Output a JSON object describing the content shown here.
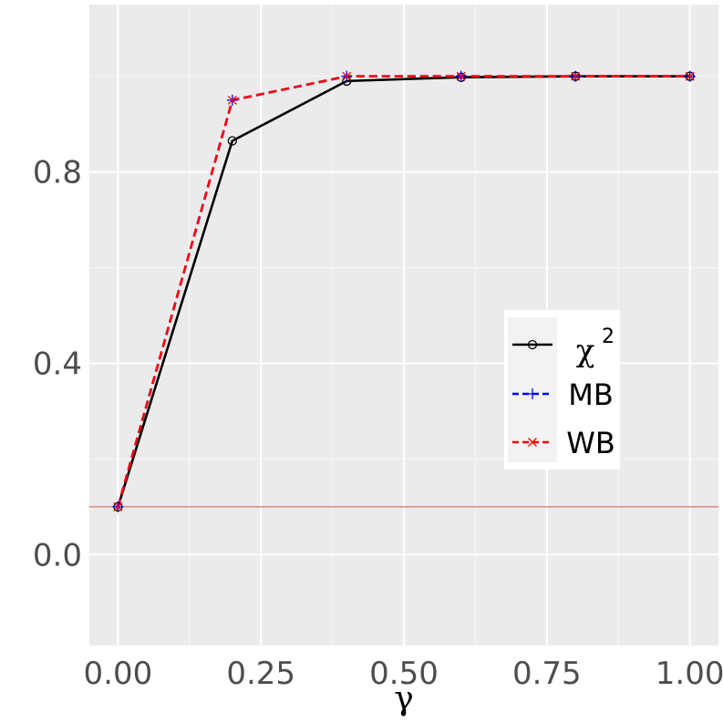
{
  "chart_data": {
    "type": "line",
    "title": "",
    "xlabel": "γ",
    "ylabel": "",
    "x": [
      0.0,
      0.2,
      0.4,
      0.6,
      0.8,
      1.0
    ],
    "xlim": [
      -0.05,
      1.05
    ],
    "ylim": [
      -0.19,
      1.15
    ],
    "xticks": [
      0.0,
      0.25,
      0.5,
      0.75,
      1.0
    ],
    "xtick_labels": [
      "0.00",
      "0.25",
      "0.50",
      "0.75",
      "1.00"
    ],
    "yticks": [
      0.0,
      0.4,
      0.8
    ],
    "ytick_labels": [
      "0.0",
      "0.4",
      "0.8"
    ],
    "grid": true,
    "reference_line": {
      "y": 0.1,
      "color": "#d9534f"
    },
    "legend_position": "right",
    "series": [
      {
        "name": "χ",
        "superscript": "2",
        "values": [
          0.1,
          0.865,
          0.99,
          0.998,
          1.0,
          1.0
        ],
        "color": "#000000",
        "dash": "solid",
        "marker": "circle"
      },
      {
        "name": "MB",
        "values": [
          0.1,
          0.95,
          1.0,
          1.0,
          1.0,
          1.0
        ],
        "color": "#0000ff",
        "dash": "dashed",
        "marker": "plus"
      },
      {
        "name": "WB",
        "values": [
          0.1,
          0.95,
          1.0,
          1.0,
          1.0,
          1.0
        ],
        "color": "#ff0000",
        "dash": "dashed",
        "marker": "cross"
      }
    ]
  }
}
